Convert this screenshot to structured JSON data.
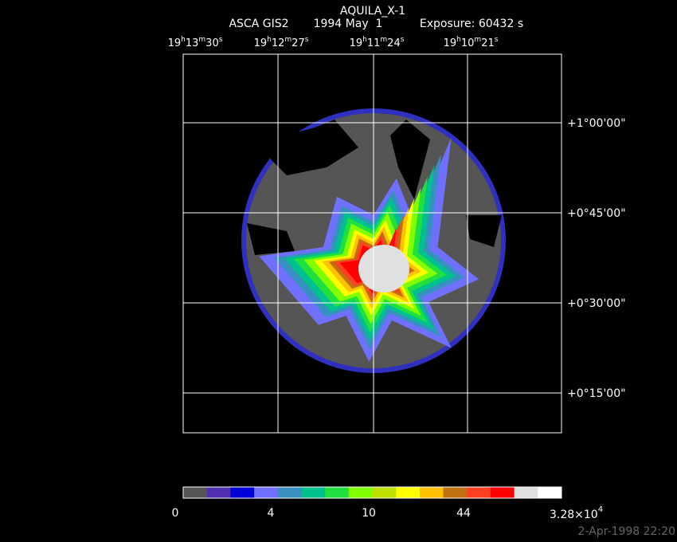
{
  "header": {
    "title": "AQUILA_X-1",
    "instrument": "ASCA GIS2",
    "date": "1994 May  1",
    "exposure": "Exposure: 60432 s"
  },
  "ra_labels": [
    [
      "19",
      "h",
      "13",
      "m",
      "30",
      "s"
    ],
    [
      "19",
      "h",
      "12",
      "m",
      "27",
      "s"
    ],
    [
      "19",
      "h",
      "11",
      "m",
      "24",
      "s"
    ],
    [
      "19",
      "h",
      "10",
      "m",
      "21",
      "s"
    ]
  ],
  "dec_labels": [
    "+1°00'00\"",
    "+0°45'00\"",
    "+0°30'00\"",
    "+0°15'00\""
  ],
  "colorbar": {
    "colors": [
      "#555555",
      "#5030b0",
      "#0000d8",
      "#7070ff",
      "#3890c0",
      "#00c090",
      "#20e040",
      "#80ff00",
      "#c0e000",
      "#ffff00",
      "#ffc000",
      "#c07010",
      "#ff4020",
      "#ff0000",
      "#e0e0e0",
      "#ffffff"
    ],
    "labels": [
      "0",
      "4",
      "10",
      "44"
    ],
    "max_label": {
      "mantissa": "3.28×10",
      "exponent": "4"
    }
  },
  "timestamp": "2-Apr-1998 22:20"
}
